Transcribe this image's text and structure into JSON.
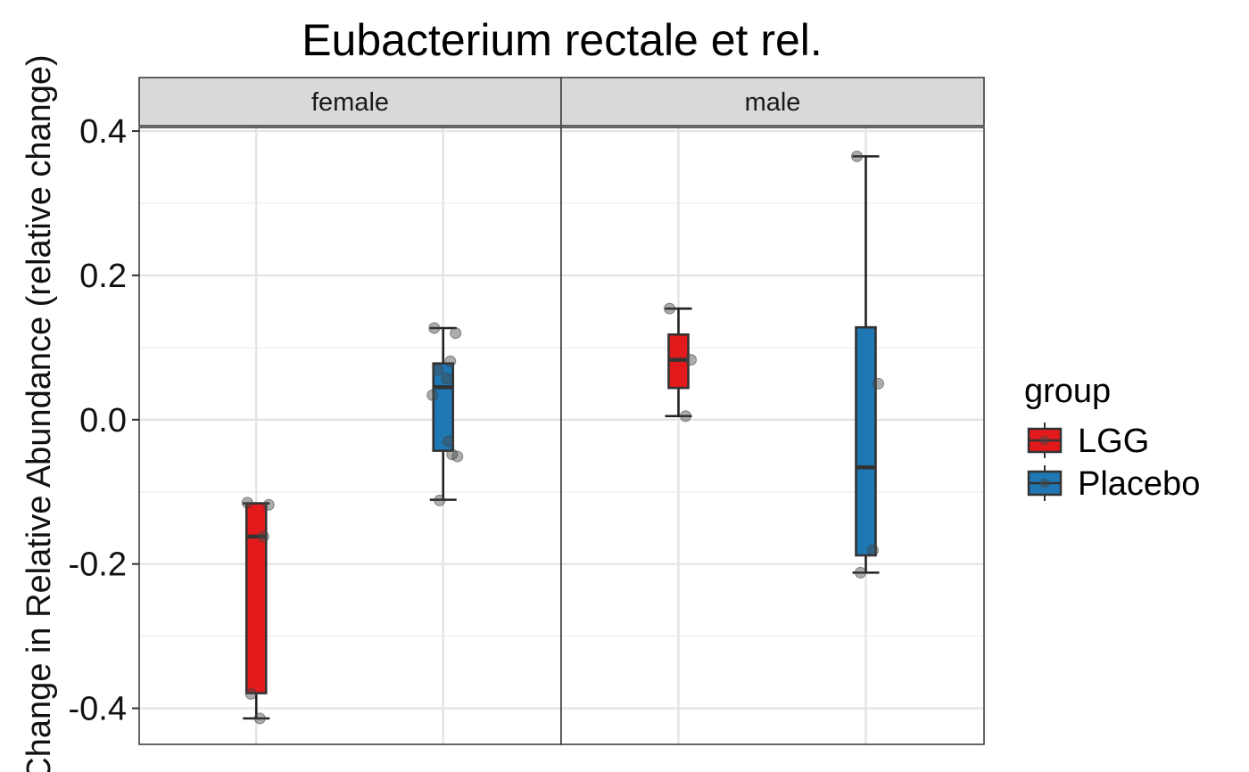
{
  "chart_data": {
    "type": "boxplot",
    "title": "Eubacterium rectale et rel.",
    "ylabel": "Change in Relative Abundance (relative change)",
    "xlabel": "",
    "ylim": [
      -0.45,
      0.405
    ],
    "yticks": [
      -0.4,
      -0.2,
      0.0,
      0.2,
      0.4
    ],
    "ytick_labels": [
      "-0.4",
      "-0.2",
      "0.0",
      "0.2",
      "0.4"
    ],
    "grid": true,
    "legend": {
      "title": "group",
      "position": "right",
      "entries": [
        "LGG",
        "Placebo"
      ]
    },
    "colors": {
      "LGG": "#e31a1c",
      "Placebo": "#1f78b4"
    },
    "facets": [
      {
        "label": "female",
        "groups": [
          {
            "group": "LGG",
            "whisker_low": -0.414,
            "q1": -0.379,
            "median": -0.162,
            "q3": -0.116,
            "whisker_high": -0.116,
            "points": [
              -0.115,
              -0.118,
              -0.162,
              -0.38,
              -0.414
            ]
          },
          {
            "group": "Placebo",
            "whisker_low": -0.111,
            "q1": -0.043,
            "median": 0.045,
            "q3": 0.078,
            "whisker_high": 0.127,
            "points": [
              0.127,
              0.12,
              0.081,
              0.069,
              0.057,
              0.034,
              -0.03,
              -0.048,
              -0.051,
              -0.112
            ]
          }
        ]
      },
      {
        "label": "male",
        "groups": [
          {
            "group": "LGG",
            "whisker_low": 0.005,
            "q1": 0.044,
            "median": 0.083,
            "q3": 0.118,
            "whisker_high": 0.154,
            "points": [
              0.154,
              0.083,
              0.005
            ]
          },
          {
            "group": "Placebo",
            "whisker_low": -0.212,
            "q1": -0.188,
            "median": -0.066,
            "q3": 0.128,
            "whisker_high": 0.365,
            "points": [
              0.365,
              0.05,
              -0.181,
              -0.212
            ]
          }
        ]
      }
    ]
  }
}
